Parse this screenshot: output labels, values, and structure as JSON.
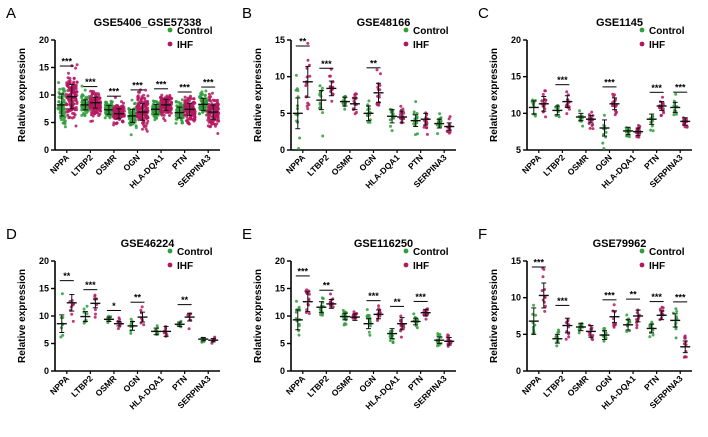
{
  "colors": {
    "control": "#2e9e3a",
    "ihf": "#b5175f",
    "axis": "#000000"
  },
  "ylabel": "Relative expression",
  "legend": [
    "Control",
    "IHF"
  ],
  "chart_data": [
    {
      "letter": "A",
      "title": "GSE5406_GSE57338",
      "type": "scatter",
      "ylim": [
        0,
        20
      ],
      "yticks": [
        0,
        5,
        10,
        15,
        20
      ],
      "categories": [
        "NPPA",
        "LTBP2",
        "OSMR",
        "OGN",
        "HLA-DQA1",
        "PTN",
        "SERPINA3"
      ],
      "control": {
        "mean": [
          8.2,
          8.2,
          7.3,
          6.2,
          7.4,
          6.8,
          8.3
        ],
        "sd": [
          2.0,
          0.9,
          0.8,
          1.2,
          0.9,
          1.0,
          1.1
        ],
        "n": 70
      },
      "ihf": {
        "mean": [
          9.7,
          8.6,
          6.6,
          6.9,
          8.2,
          7.4,
          6.9
        ],
        "sd": [
          2.2,
          1.0,
          0.9,
          1.5,
          1.0,
          1.1,
          1.3
        ],
        "n": 130
      },
      "sig": [
        "***",
        "***",
        "***",
        "***",
        "***",
        "***",
        "***"
      ]
    },
    {
      "letter": "B",
      "title": "GSE48166",
      "type": "scatter",
      "ylim": [
        0,
        15
      ],
      "yticks": [
        0,
        5,
        10,
        15
      ],
      "categories": [
        "NPPA",
        "LTBP2",
        "OSMR",
        "OGN",
        "HLA-DQA1",
        "PTN",
        "SERPINA3"
      ],
      "control": {
        "mean": [
          5.0,
          6.8,
          6.6,
          5.0,
          4.6,
          4.0,
          3.6
        ],
        "sd": [
          2.1,
          1.3,
          0.6,
          1.0,
          0.9,
          0.8,
          0.6
        ],
        "n": 15
      },
      "ihf": {
        "mean": [
          9.3,
          8.4,
          6.3,
          7.8,
          4.5,
          4.2,
          3.2
        ],
        "sd": [
          2.1,
          1.0,
          0.8,
          1.3,
          0.8,
          0.8,
          0.5
        ],
        "n": 15
      },
      "sig": [
        "**",
        "***",
        "",
        "**",
        "",
        "",
        ""
      ]
    },
    {
      "letter": "C",
      "title": "GSE1145",
      "type": "scatter",
      "ylim": [
        5,
        20
      ],
      "yticks": [
        5,
        10,
        15,
        20
      ],
      "categories": [
        "NPPA",
        "LTBP2",
        "OSMR",
        "OGN",
        "HLA-DQA1",
        "PTN",
        "SERPINA3"
      ],
      "control": {
        "mean": [
          10.8,
          10.4,
          9.5,
          8.0,
          7.6,
          9.2,
          10.8
        ],
        "sd": [
          0.9,
          0.6,
          0.5,
          1.1,
          0.5,
          0.7,
          0.7
        ],
        "n": 11
      },
      "ihf": {
        "mean": [
          11.3,
          11.6,
          9.2,
          11.3,
          7.5,
          11.0,
          8.9
        ],
        "sd": [
          1.0,
          0.8,
          0.5,
          0.8,
          0.5,
          0.6,
          0.5
        ],
        "n": 16
      },
      "sig": [
        "",
        "***",
        "",
        "***",
        "",
        "***",
        "***"
      ]
    },
    {
      "letter": "D",
      "title": "GSE46224",
      "type": "scatter",
      "ylim": [
        0,
        20
      ],
      "yticks": [
        0,
        5,
        10,
        15,
        20
      ],
      "categories": [
        "NPPA",
        "LTBP2",
        "OSMR",
        "OGN",
        "HLA-DQA1",
        "PTN",
        "SERPINA3"
      ],
      "control": {
        "mean": [
          8.6,
          9.9,
          9.4,
          8.2,
          7.2,
          8.5,
          5.8
        ],
        "sd": [
          1.6,
          0.9,
          0.4,
          0.8,
          0.6,
          0.4,
          0.3
        ],
        "n": 8
      },
      "ihf": {
        "mean": [
          12.4,
          12.3,
          8.6,
          9.8,
          7.2,
          9.8,
          5.6
        ],
        "sd": [
          1.5,
          0.8,
          0.4,
          0.9,
          0.9,
          0.7,
          0.3
        ],
        "n": 8
      },
      "sig": [
        "**",
        "***",
        "*",
        "**",
        "",
        "**",
        ""
      ]
    },
    {
      "letter": "E",
      "title": "GSE116250",
      "type": "scatter",
      "ylim": [
        0,
        20
      ],
      "yticks": [
        0,
        5,
        10,
        15,
        20
      ],
      "categories": [
        "NPPA",
        "LTBP2",
        "OSMR",
        "OGN",
        "HLA-DQA1",
        "PTN",
        "SERPINA3"
      ],
      "control": {
        "mean": [
          9.3,
          11.6,
          9.9,
          8.6,
          6.8,
          9.0,
          5.6
        ],
        "sd": [
          1.8,
          1.0,
          0.6,
          0.9,
          0.9,
          0.6,
          0.6
        ],
        "n": 14
      },
      "ihf": {
        "mean": [
          12.6,
          12.2,
          9.8,
          10.3,
          8.6,
          10.6,
          5.4
        ],
        "sd": [
          1.8,
          0.8,
          0.6,
          0.8,
          1.1,
          0.6,
          0.7
        ],
        "n": 13
      },
      "sig": [
        "***",
        "**",
        "",
        "***",
        "**",
        "***",
        ""
      ]
    },
    {
      "letter": "F",
      "title": "GSE79962",
      "type": "scatter",
      "ylim": [
        0,
        15
      ],
      "yticks": [
        0,
        5,
        10,
        15
      ],
      "categories": [
        "NPPA",
        "LTBP2",
        "OSMR",
        "OGN",
        "HLA-DQA1",
        "PTN",
        "SERPINA3"
      ],
      "control": {
        "mean": [
          6.8,
          4.4,
          6.0,
          4.9,
          6.3,
          5.8,
          6.9
        ],
        "sd": [
          1.8,
          0.6,
          0.5,
          0.6,
          0.7,
          0.6,
          0.9
        ],
        "n": 11
      },
      "ihf": {
        "mean": [
          10.3,
          6.2,
          5.4,
          7.4,
          7.5,
          7.6,
          3.3
        ],
        "sd": [
          1.7,
          1.0,
          0.8,
          0.8,
          0.8,
          0.6,
          0.8
        ],
        "n": 11
      },
      "sig": [
        "***",
        "***",
        "",
        "***",
        "**",
        "***",
        "***"
      ]
    }
  ]
}
